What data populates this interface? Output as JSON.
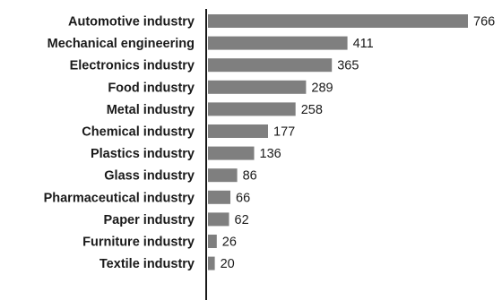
{
  "chart_data": {
    "type": "bar",
    "orientation": "horizontal",
    "categories": [
      "Automotive industry",
      "Mechanical engineering",
      "Electronics industry",
      "Food industry",
      "Metal industry",
      "Chemical industry",
      "Plastics industry",
      "Glass industry",
      "Pharmaceutical industry",
      "Paper industry",
      "Furniture industry",
      "Textile industry"
    ],
    "values": [
      766,
      411,
      365,
      289,
      258,
      177,
      136,
      86,
      66,
      62,
      26,
      20
    ],
    "title": "",
    "xlabel": "",
    "ylabel": "",
    "xlim": [
      0,
      766
    ],
    "grid": false,
    "legend": "none",
    "bar_color": "#7f7f7f",
    "axis_color": "#1a1a1a"
  }
}
